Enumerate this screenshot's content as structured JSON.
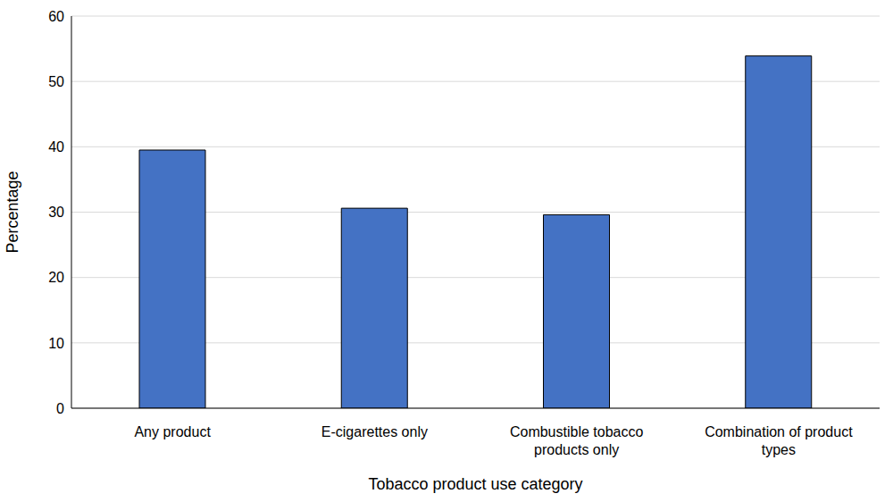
{
  "chart_data": {
    "type": "bar",
    "categories": [
      "Any product",
      "E-cigarettes only",
      "Combustible tobacco products only",
      "Combination of product types"
    ],
    "values": [
      39.5,
      30.6,
      29.6,
      53.9
    ],
    "color": "#4472c4",
    "x_label": "Tobacco product use category",
    "y_label": "Percentage",
    "ylim": [
      0,
      60
    ],
    "yticks": [
      0,
      10,
      20,
      30,
      40,
      50,
      60
    ],
    "grid": true
  }
}
